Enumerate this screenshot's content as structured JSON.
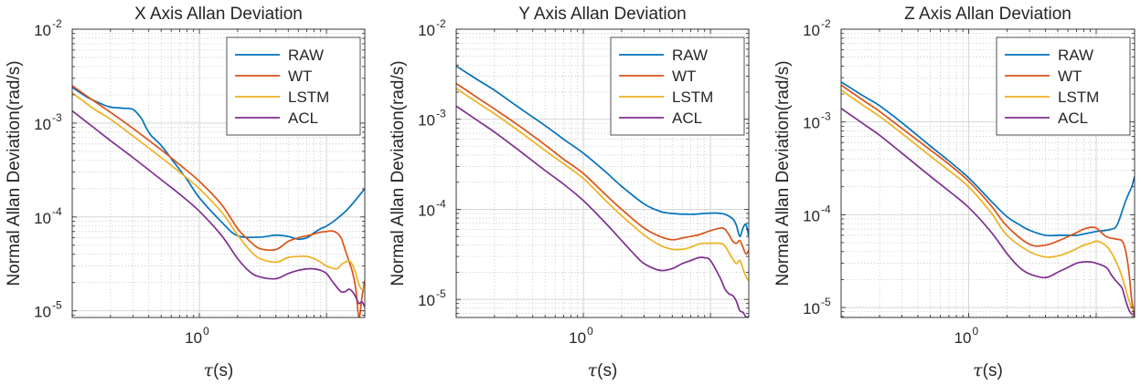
{
  "figure": {
    "background": "#ffffff",
    "axis_color": "#262626",
    "grid_color": "#d9d9d9"
  },
  "chart_data": [
    {
      "type": "line",
      "title": "X Axis Allan Deviation",
      "xlabel": "τ(s)",
      "ylabel": "Normal Allan Deviation(rad/s)",
      "xscale": "log",
      "yscale": "log",
      "xlim": [
        0.1,
        20
      ],
      "ylim": [
        8.5e-06,
        0.01
      ],
      "xticks": [
        {
          "value": 1,
          "base": "10",
          "exp": "0"
        }
      ],
      "yticks": [
        {
          "value": 0.01,
          "base": "10",
          "exp": "-2"
        },
        {
          "value": 0.001,
          "base": "10",
          "exp": "-3"
        },
        {
          "value": 0.0001,
          "base": "10",
          "exp": "-4"
        },
        {
          "value": 1e-05,
          "base": "10",
          "exp": "-5"
        }
      ],
      "grid": true,
      "legend": "top-right",
      "series": [
        {
          "name": "RAW",
          "color": "#0072BD",
          "x": [
            0.1,
            0.13,
            0.17,
            0.2,
            0.25,
            0.3,
            0.35,
            0.38,
            0.42,
            0.5,
            0.6,
            0.8,
            1,
            1.5,
            2,
            3,
            4,
            5,
            6,
            7,
            8,
            9,
            10,
            12,
            15,
            20
          ],
          "y": [
            0.0024,
            0.0019,
            0.0016,
            0.00148,
            0.00144,
            0.0014,
            0.00112,
            0.0009,
            0.00073,
            0.00058,
            0.00042,
            0.00025,
            0.00016,
            8.8e-05,
            6.3e-05,
            6.1e-05,
            6.4e-05,
            6.2e-05,
            5.8e-05,
            6e-05,
            6.8e-05,
            7.5e-05,
            8e-05,
            9.5e-05,
            0.000125,
            0.0002
          ]
        },
        {
          "name": "WT",
          "color": "#D95319",
          "x": [
            0.1,
            0.15,
            0.2,
            0.3,
            0.5,
            0.7,
            1,
            1.5,
            2,
            2.5,
            3,
            4,
            5,
            6,
            7,
            8,
            9,
            10,
            11,
            12,
            13,
            14,
            15,
            16,
            17,
            18,
            19,
            20
          ],
          "y": [
            0.0025,
            0.0017,
            0.0013,
            0.00088,
            0.00052,
            0.00036,
            0.00024,
            0.000135,
            7.5e-05,
            5.5e-05,
            4.6e-05,
            4.5e-05,
            5.5e-05,
            6e-05,
            6.3e-05,
            6.6e-05,
            6.9e-05,
            7e-05,
            7.1e-05,
            6.8e-05,
            6e-05,
            4.5e-05,
            3.4e-05,
            2.6e-05,
            1.7e-05,
            8.5e-06,
            1.4e-05,
            2.1e-05
          ]
        },
        {
          "name": "LSTM",
          "color": "#EDB120",
          "x": [
            0.1,
            0.15,
            0.2,
            0.3,
            0.5,
            0.7,
            1,
            1.5,
            2,
            2.5,
            3,
            4,
            5,
            6,
            7,
            8,
            9,
            10,
            12,
            13,
            14,
            15,
            16,
            17,
            18,
            19,
            20
          ],
          "y": [
            0.0021,
            0.0014,
            0.0011,
            0.00073,
            0.00043,
            0.0003,
            0.0002,
            0.000112,
            6.4e-05,
            4.4e-05,
            3.6e-05,
            3.3e-05,
            3.7e-05,
            3.8e-05,
            3.8e-05,
            3.6e-05,
            3.3e-05,
            3e-05,
            2.8e-05,
            3.1e-05,
            3.3e-05,
            3.4e-05,
            3.1e-05,
            2.5e-05,
            1.9e-05,
            1.7e-05,
            1.8e-05
          ]
        },
        {
          "name": "ACL",
          "color": "#7E2F8E",
          "x": [
            0.1,
            0.15,
            0.2,
            0.3,
            0.5,
            0.7,
            1,
            1.5,
            2,
            2.5,
            3,
            4,
            5,
            6,
            7,
            8,
            9,
            10,
            11,
            12,
            13,
            14,
            15,
            16,
            17,
            18,
            19,
            20
          ],
          "y": [
            0.00135,
            0.00088,
            0.00065,
            0.00043,
            0.00025,
            0.000175,
            0.000115,
            6.3e-05,
            3.6e-05,
            2.6e-05,
            2.3e-05,
            2.2e-05,
            2.5e-05,
            2.7e-05,
            2.8e-05,
            2.8e-05,
            2.7e-05,
            2.5e-05,
            2.1e-05,
            1.8e-05,
            1.6e-05,
            1.6e-05,
            1.7e-05,
            1.6e-05,
            1.4e-05,
            1.2e-05,
            1.25e-05,
            1.1e-05
          ]
        }
      ]
    },
    {
      "type": "line",
      "title": "Y Axis Allan Deviation",
      "xlabel": "τ(s)",
      "ylabel": "Normal Allan Deviation(rad/s)",
      "xscale": "log",
      "yscale": "log",
      "xlim": [
        0.1,
        20
      ],
      "ylim": [
        6.3e-06,
        0.01
      ],
      "xticks": [
        {
          "value": 1,
          "base": "10",
          "exp": "0"
        }
      ],
      "yticks": [
        {
          "value": 0.01,
          "base": "10",
          "exp": "-2"
        },
        {
          "value": 0.001,
          "base": "10",
          "exp": "-3"
        },
        {
          "value": 0.0001,
          "base": "10",
          "exp": "-4"
        },
        {
          "value": 1e-05,
          "base": "10",
          "exp": "-5"
        }
      ],
      "grid": true,
      "legend": "top-right",
      "series": [
        {
          "name": "RAW",
          "color": "#0072BD",
          "x": [
            0.1,
            0.15,
            0.2,
            0.3,
            0.5,
            0.7,
            1,
            1.5,
            2,
            3,
            4,
            5,
            7,
            9,
            11,
            13,
            15,
            16,
            17,
            18,
            19,
            20
          ],
          "y": [
            0.0039,
            0.0027,
            0.0021,
            0.0014,
            0.00085,
            0.0006,
            0.00042,
            0.00026,
            0.00018,
            0.000115,
            9.5e-05,
            9e-05,
            8.8e-05,
            9e-05,
            9.1e-05,
            8.8e-05,
            7.8e-05,
            6.6e-05,
            5e-05,
            6.2e-05,
            6.8e-05,
            5e-05
          ]
        },
        {
          "name": "WT",
          "color": "#D95319",
          "x": [
            0.1,
            0.15,
            0.2,
            0.3,
            0.5,
            0.7,
            1,
            1.5,
            2,
            3,
            4,
            5,
            6,
            7,
            8,
            9,
            10,
            12,
            13,
            14,
            15,
            16,
            17,
            18,
            19,
            20
          ],
          "y": [
            0.0025,
            0.0017,
            0.0013,
            0.00088,
            0.00052,
            0.00036,
            0.00025,
            0.000145,
            0.0001,
            6.2e-05,
            5e-05,
            4.6e-05,
            4.8e-05,
            5e-05,
            5.2e-05,
            5.5e-05,
            5.8e-05,
            6.2e-05,
            6e-05,
            5.2e-05,
            4.4e-05,
            4.2e-05,
            4.5e-05,
            3.8e-05,
            3.2e-05,
            3.5e-05
          ]
        },
        {
          "name": "LSTM",
          "color": "#EDB120",
          "x": [
            0.1,
            0.15,
            0.2,
            0.3,
            0.5,
            0.7,
            1,
            1.5,
            2,
            3,
            4,
            5,
            6,
            7,
            8,
            9,
            10,
            12,
            13,
            14,
            15,
            16,
            17,
            18,
            19,
            20
          ],
          "y": [
            0.0022,
            0.0015,
            0.00115,
            0.00077,
            0.00045,
            0.00032,
            0.00022,
            0.000125,
            8.5e-05,
            5.2e-05,
            4e-05,
            3.6e-05,
            3.6e-05,
            3.8e-05,
            4.1e-05,
            4.2e-05,
            4.2e-05,
            4.2e-05,
            3.9e-05,
            3.3e-05,
            2.8e-05,
            2.5e-05,
            2.7e-05,
            2.2e-05,
            1.8e-05,
            1.6e-05
          ]
        },
        {
          "name": "ACL",
          "color": "#7E2F8E",
          "x": [
            0.1,
            0.15,
            0.2,
            0.3,
            0.5,
            0.7,
            1,
            1.5,
            2,
            2.5,
            3,
            4,
            5,
            6,
            7,
            8,
            9,
            10,
            12,
            13,
            14,
            15,
            16,
            17,
            18,
            19,
            20
          ],
          "y": [
            0.0014,
            0.00095,
            0.00072,
            0.00047,
            0.00027,
            0.00019,
            0.000125,
            7e-05,
            4.5e-05,
            3.2e-05,
            2.5e-05,
            2.1e-05,
            2.2e-05,
            2.5e-05,
            2.7e-05,
            2.9e-05,
            2.9e-05,
            2.7e-05,
            1.7e-05,
            1.3e-05,
            1.15e-05,
            1.1e-05,
            9.5e-06,
            7.5e-06,
            7.2e-06,
            6.4e-06,
            6.4e-06
          ]
        }
      ]
    },
    {
      "type": "line",
      "title": "Z Axis Allan Deviation",
      "xlabel": "τ(s)",
      "ylabel": "Normal Allan Deviation(rad/s)",
      "xscale": "log",
      "yscale": "log",
      "xlim": [
        0.1,
        20
      ],
      "ylim": [
        7.8e-06,
        0.01
      ],
      "xticks": [
        {
          "value": 1,
          "base": "10",
          "exp": "0"
        }
      ],
      "yticks": [
        {
          "value": 0.01,
          "base": "10",
          "exp": "-2"
        },
        {
          "value": 0.001,
          "base": "10",
          "exp": "-3"
        },
        {
          "value": 0.0001,
          "base": "10",
          "exp": "-4"
        },
        {
          "value": 1e-05,
          "base": "10",
          "exp": "-5"
        }
      ],
      "grid": true,
      "legend": "top-right",
      "series": [
        {
          "name": "RAW",
          "color": "#0072BD",
          "x": [
            0.1,
            0.15,
            0.2,
            0.3,
            0.5,
            0.7,
            1,
            1.5,
            2,
            2.5,
            3,
            4,
            5,
            6,
            7,
            8,
            9,
            10,
            12,
            14,
            15,
            16,
            17,
            18,
            19,
            20
          ],
          "y": [
            0.0027,
            0.0019,
            0.0015,
            0.00098,
            0.00055,
            0.00038,
            0.00025,
            0.00014,
            9.5e-05,
            7.8e-05,
            6.8e-05,
            6e-05,
            6e-05,
            6e-05,
            6e-05,
            6.2e-05,
            6.4e-05,
            6.6e-05,
            6.8e-05,
            7.2e-05,
            8.5e-05,
            0.00011,
            0.00014,
            0.00017,
            0.0002,
            0.00026
          ]
        },
        {
          "name": "WT",
          "color": "#D95319",
          "x": [
            0.1,
            0.15,
            0.2,
            0.3,
            0.5,
            0.7,
            1,
            1.5,
            2,
            3,
            4,
            5,
            6,
            7,
            8,
            9,
            10,
            11,
            12,
            13,
            14,
            15,
            16,
            17,
            18,
            19,
            20
          ],
          "y": [
            0.0025,
            0.0017,
            0.0013,
            0.00085,
            0.0005,
            0.00035,
            0.00023,
            0.000125,
            7.5e-05,
            4.8e-05,
            4.7e-05,
            5.2e-05,
            5.8e-05,
            6.4e-05,
            7e-05,
            7.3e-05,
            7.2e-05,
            6.4e-05,
            5.8e-05,
            5.6e-05,
            5.5e-05,
            5.4e-05,
            5.2e-05,
            4.1e-05,
            2.5e-05,
            1.2e-05,
            7.8e-06
          ]
        },
        {
          "name": "LSTM",
          "color": "#EDB120",
          "x": [
            0.1,
            0.15,
            0.2,
            0.3,
            0.5,
            0.7,
            1,
            1.5,
            2,
            3,
            4,
            5,
            6,
            7,
            8,
            9,
            10,
            11,
            12,
            13,
            14,
            15,
            16,
            17,
            18,
            19,
            20
          ],
          "y": [
            0.0022,
            0.0015,
            0.00115,
            0.00075,
            0.00043,
            0.0003,
            0.0002,
            0.000105,
            6e-05,
            4e-05,
            3.5e-05,
            3.6e-05,
            3.9e-05,
            4.3e-05,
            4.7e-05,
            4.9e-05,
            5.2e-05,
            5e-05,
            4.6e-05,
            4e-05,
            3.3e-05,
            2.7e-05,
            2.1e-05,
            1.6e-05,
            1.2e-05,
            1e-05,
            9.5e-06
          ]
        },
        {
          "name": "ACL",
          "color": "#7E2F8E",
          "x": [
            0.1,
            0.15,
            0.2,
            0.3,
            0.5,
            0.7,
            1,
            1.5,
            2,
            2.5,
            3,
            4,
            5,
            6,
            7,
            8,
            9,
            10,
            12,
            13,
            14,
            15,
            16,
            17,
            18,
            19,
            20
          ],
          "y": [
            0.0014,
            0.00095,
            0.00072,
            0.00046,
            0.00026,
            0.00018,
            0.00012,
            6.5e-05,
            3.8e-05,
            2.7e-05,
            2.3e-05,
            2.1e-05,
            2.4e-05,
            2.7e-05,
            3e-05,
            3.1e-05,
            3.1e-05,
            3e-05,
            2.7e-05,
            2.3e-05,
            2e-05,
            1.8e-05,
            1.6e-05,
            1.2e-05,
            9.5e-06,
            8.5e-06,
            8.5e-06
          ]
        }
      ]
    }
  ]
}
